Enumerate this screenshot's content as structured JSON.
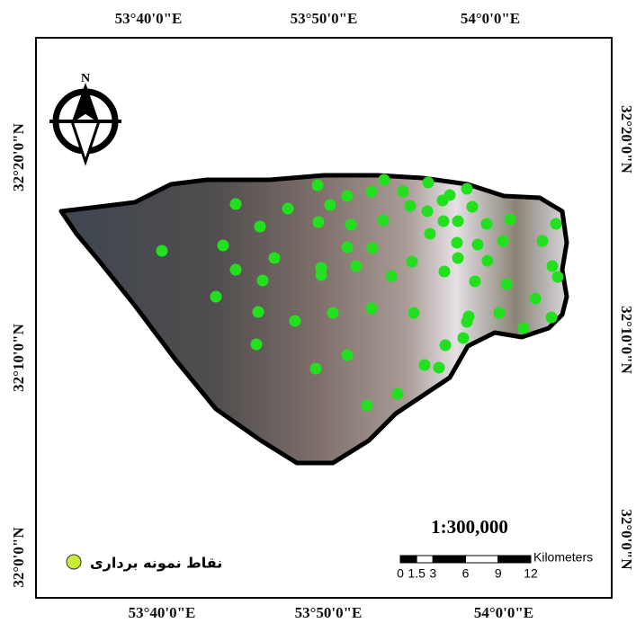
{
  "map": {
    "lon_labels": [
      "53°40'0\"E",
      "53°50'0\"E",
      "54°0'0\"E"
    ],
    "lat_labels": [
      "32°20'0\"N",
      "32°10'0\"N",
      "32°0'0\"N"
    ],
    "north": "N",
    "scale": "1:300,000",
    "scale_bar": {
      "unit": "Kilometers",
      "ticks": [
        0,
        1.5,
        3,
        6,
        9,
        12
      ]
    },
    "legend": {
      "label": "نقاط نمونه برداری"
    }
  }
}
